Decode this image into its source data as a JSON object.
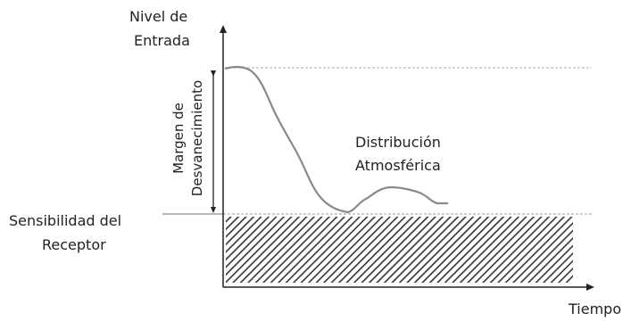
{
  "y_axis_label": [
    "Nivel de",
    "Entrada"
  ],
  "x_axis_label": "Tiempo",
  "fade_margin_label": [
    "Margen de",
    "Desvanecimiento"
  ],
  "curve_label": [
    "Distribución",
    "Atmosférica"
  ],
  "sensitivity_label": [
    "Sensibilidad del",
    "Receptor"
  ],
  "colors": {
    "axis": "#222222",
    "curve": "#8a8a8a",
    "reference_line": "#b8b8b8",
    "hatch": "#333333"
  }
}
